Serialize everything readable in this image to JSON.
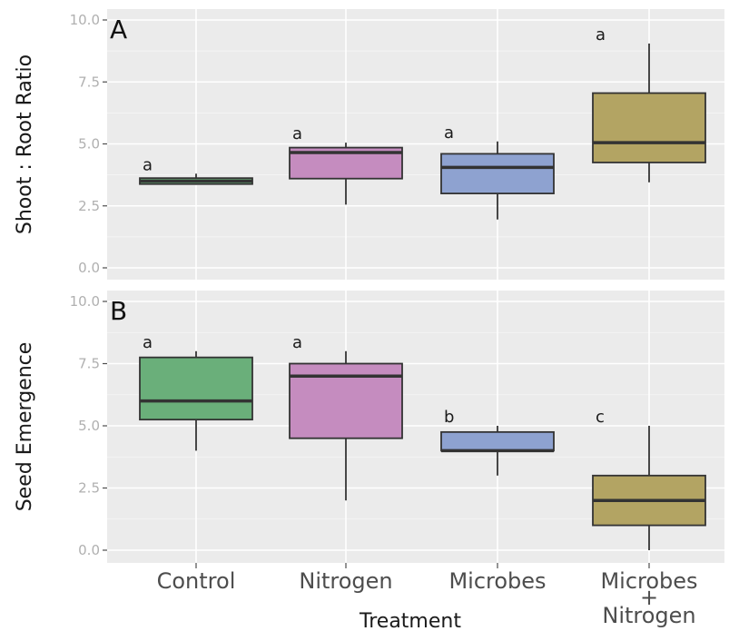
{
  "chart_data": {
    "type": "box",
    "xlabel": "Treatment",
    "categories": [
      {
        "lines": [
          "Control"
        ]
      },
      {
        "lines": [
          "Nitrogen"
        ]
      },
      {
        "lines": [
          "Microbes"
        ]
      },
      {
        "lines": [
          "Microbes",
          "+",
          "Nitrogen"
        ]
      }
    ],
    "colors": [
      "#6aaf7a",
      "#c58cbf",
      "#8ea2d0",
      "#b3a463"
    ],
    "ylim": [
      0,
      10
    ],
    "yticks": [
      "0.0",
      "2.5",
      "5.0",
      "7.5",
      "10.0"
    ],
    "grid": true,
    "panels": [
      {
        "tag": "A",
        "ylabel": "Shoot : Root Ratio",
        "boxes": [
          {
            "whisker_low": 3.35,
            "q1": 3.38,
            "median": 3.5,
            "q3": 3.62,
            "whisker_high": 3.8,
            "letter": "a"
          },
          {
            "whisker_low": 2.55,
            "q1": 3.6,
            "median": 4.65,
            "q3": 4.85,
            "whisker_high": 5.05,
            "letter": "a"
          },
          {
            "whisker_low": 1.95,
            "q1": 3.0,
            "median": 4.05,
            "q3": 4.6,
            "whisker_high": 5.1,
            "letter": "a"
          },
          {
            "whisker_low": 3.45,
            "q1": 4.25,
            "median": 5.05,
            "q3": 7.05,
            "whisker_high": 9.05,
            "letter": "a"
          }
        ]
      },
      {
        "tag": "B",
        "ylabel": "Seed Emergence",
        "boxes": [
          {
            "whisker_low": 4.0,
            "q1": 5.25,
            "median": 6.0,
            "q3": 7.75,
            "whisker_high": 8.0,
            "letter": "a"
          },
          {
            "whisker_low": 2.0,
            "q1": 4.5,
            "median": 7.0,
            "q3": 7.5,
            "whisker_high": 8.0,
            "letter": "a"
          },
          {
            "whisker_low": 3.0,
            "q1": 4.0,
            "median": 4.0,
            "q3": 4.75,
            "whisker_high": 5.0,
            "letter": "b"
          },
          {
            "whisker_low": 0.0,
            "q1": 1.0,
            "median": 2.0,
            "q3": 3.0,
            "whisker_high": 5.0,
            "letter": "c"
          }
        ]
      }
    ]
  }
}
